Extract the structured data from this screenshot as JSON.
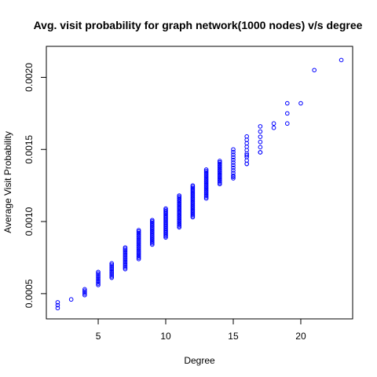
{
  "chart_data": {
    "type": "scatter",
    "title": "Avg. visit probability for graph network(1000 nodes) v/s degree",
    "xlabel": "Degree",
    "ylabel": "Average Visit Probability",
    "xlim": [
      1.16,
      23.84
    ],
    "ylim": [
      0.000325,
      0.002215
    ],
    "xticks": [
      5,
      10,
      15,
      20
    ],
    "xtick_labels": [
      "5",
      "10",
      "15",
      "20"
    ],
    "yticks": [
      0.0005,
      0.001,
      0.0015,
      0.002
    ],
    "ytick_labels": [
      "0.0005",
      "0.0010",
      "0.0015",
      "0.0020"
    ],
    "grid": false,
    "legend": null,
    "color": "#0000ff",
    "ranges": [
      {
        "x": 2,
        "ymin": 0.0004,
        "ymax": 0.00044,
        "n": 3
      },
      {
        "x": 3,
        "ymin": 0.00046,
        "ymax": 0.00046,
        "n": 1
      },
      {
        "x": 4,
        "ymin": 0.00049,
        "ymax": 0.00053,
        "n": 5
      },
      {
        "x": 5,
        "ymin": 0.00056,
        "ymax": 0.00065,
        "n": 10
      },
      {
        "x": 6,
        "ymin": 0.00061,
        "ymax": 0.00071,
        "n": 11
      },
      {
        "x": 7,
        "ymin": 0.00067,
        "ymax": 0.00082,
        "n": 16
      },
      {
        "x": 8,
        "ymin": 0.00074,
        "ymax": 0.00094,
        "n": 22
      },
      {
        "x": 9,
        "ymin": 0.00084,
        "ymax": 0.00101,
        "n": 20
      },
      {
        "x": 10,
        "ymin": 0.00089,
        "ymax": 0.00109,
        "n": 24
      },
      {
        "x": 11,
        "ymin": 0.00096,
        "ymax": 0.00118,
        "n": 25
      },
      {
        "x": 12,
        "ymin": 0.00103,
        "ymax": 0.00125,
        "n": 25
      },
      {
        "x": 13,
        "ymin": 0.00116,
        "ymax": 0.00136,
        "n": 22
      },
      {
        "x": 14,
        "ymin": 0.00126,
        "ymax": 0.00142,
        "n": 18
      },
      {
        "x": 15,
        "ymin": 0.0013,
        "ymax": 0.0015,
        "n": 12
      },
      {
        "x": 16,
        "ymin": 0.0014,
        "ymax": 0.00159,
        "n": 9
      },
      {
        "x": 17,
        "ymin": 0.00148,
        "ymax": 0.00166,
        "n": 6
      }
    ],
    "points": [
      {
        "x": 15,
        "y": 0.00131
      },
      {
        "x": 16,
        "y": 0.0014
      },
      {
        "x": 16,
        "y": 0.00146
      },
      {
        "x": 17,
        "y": 0.00148
      },
      {
        "x": 18,
        "y": 0.00165
      },
      {
        "x": 18,
        "y": 0.00168
      },
      {
        "x": 19,
        "y": 0.00168
      },
      {
        "x": 19,
        "y": 0.00175
      },
      {
        "x": 19,
        "y": 0.00182
      },
      {
        "x": 20,
        "y": 0.00182
      },
      {
        "x": 21,
        "y": 0.00205
      },
      {
        "x": 23,
        "y": 0.00212
      }
    ]
  }
}
